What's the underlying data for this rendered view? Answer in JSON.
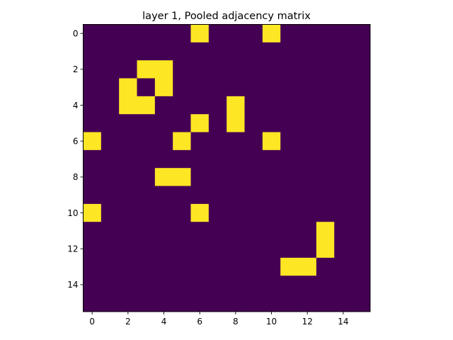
{
  "chart_data": {
    "type": "heatmap",
    "title": "layer 1, Pooled adjacency matrix",
    "xlabel": "",
    "ylabel": "",
    "rows": 16,
    "cols": 16,
    "xlim": [
      -0.5,
      15.5
    ],
    "ylim": [
      15.5,
      -0.5
    ],
    "x_ticks": [
      0,
      2,
      4,
      6,
      8,
      10,
      12,
      14
    ],
    "y_ticks": [
      0,
      2,
      4,
      6,
      8,
      10,
      12,
      14
    ],
    "colormap": {
      "low": "#440154",
      "high": "#fde725"
    },
    "grid": false,
    "values": [
      [
        0,
        0,
        0,
        0,
        0,
        0,
        1,
        0,
        0,
        0,
        1,
        0,
        0,
        0,
        0,
        0
      ],
      [
        0,
        0,
        0,
        0,
        0,
        0,
        0,
        0,
        0,
        0,
        0,
        0,
        0,
        0,
        0,
        0
      ],
      [
        0,
        0,
        0,
        1,
        1,
        0,
        0,
        0,
        0,
        0,
        0,
        0,
        0,
        0,
        0,
        0
      ],
      [
        0,
        0,
        1,
        0,
        1,
        0,
        0,
        0,
        0,
        0,
        0,
        0,
        0,
        0,
        0,
        0
      ],
      [
        0,
        0,
        1,
        1,
        0,
        0,
        0,
        0,
        1,
        0,
        0,
        0,
        0,
        0,
        0,
        0
      ],
      [
        0,
        0,
        0,
        0,
        0,
        0,
        1,
        0,
        1,
        0,
        0,
        0,
        0,
        0,
        0,
        0
      ],
      [
        1,
        0,
        0,
        0,
        0,
        1,
        0,
        0,
        0,
        0,
        1,
        0,
        0,
        0,
        0,
        0
      ],
      [
        0,
        0,
        0,
        0,
        0,
        0,
        0,
        0,
        0,
        0,
        0,
        0,
        0,
        0,
        0,
        0
      ],
      [
        0,
        0,
        0,
        0,
        1,
        1,
        0,
        0,
        0,
        0,
        0,
        0,
        0,
        0,
        0,
        0
      ],
      [
        0,
        0,
        0,
        0,
        0,
        0,
        0,
        0,
        0,
        0,
        0,
        0,
        0,
        0,
        0,
        0
      ],
      [
        1,
        0,
        0,
        0,
        0,
        0,
        1,
        0,
        0,
        0,
        0,
        0,
        0,
        0,
        0,
        0
      ],
      [
        0,
        0,
        0,
        0,
        0,
        0,
        0,
        0,
        0,
        0,
        0,
        0,
        0,
        1,
        0,
        0
      ],
      [
        0,
        0,
        0,
        0,
        0,
        0,
        0,
        0,
        0,
        0,
        0,
        0,
        0,
        1,
        0,
        0
      ],
      [
        0,
        0,
        0,
        0,
        0,
        0,
        0,
        0,
        0,
        0,
        0,
        1,
        1,
        0,
        0,
        0
      ],
      [
        0,
        0,
        0,
        0,
        0,
        0,
        0,
        0,
        0,
        0,
        0,
        0,
        0,
        0,
        0,
        0
      ],
      [
        0,
        0,
        0,
        0,
        0,
        0,
        0,
        0,
        0,
        0,
        0,
        0,
        0,
        0,
        0,
        0
      ]
    ]
  }
}
